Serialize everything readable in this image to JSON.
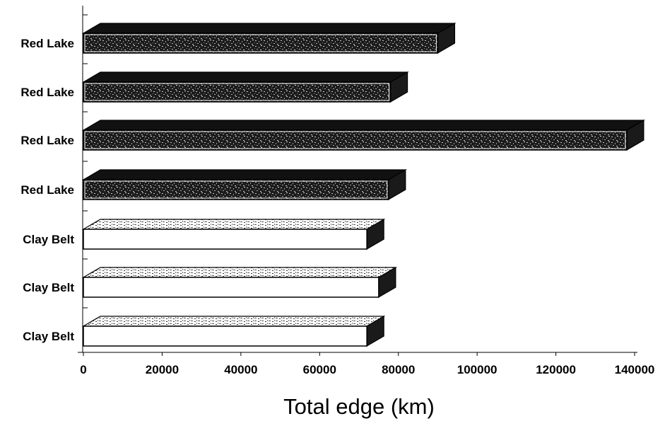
{
  "chart_data": {
    "type": "bar",
    "orientation": "horizontal",
    "style": "3d",
    "categories": [
      "Red Lake",
      "Red Lake",
      "Red Lake",
      "Red Lake",
      "Clay Belt",
      "Clay Belt",
      "Clay Belt"
    ],
    "values": [
      90000,
      78000,
      138000,
      77500,
      72000,
      75000,
      72000
    ],
    "xlabel": "Total edge (km)",
    "ylabel": "",
    "title": "",
    "xlim": [
      0,
      140000
    ],
    "xticks": [
      "0",
      "20000",
      "40000",
      "60000",
      "80000",
      "100000",
      "120000",
      "140000"
    ],
    "grid": false,
    "legend": "none",
    "colors": {
      "red_lake_fill": "#1c1c1c",
      "red_lake_speckle": "#b8b8b8",
      "clay_belt_fill": "#ffffff",
      "side_face": "#1a1a1a",
      "top_face": "#111111",
      "axis": "#000000"
    }
  }
}
